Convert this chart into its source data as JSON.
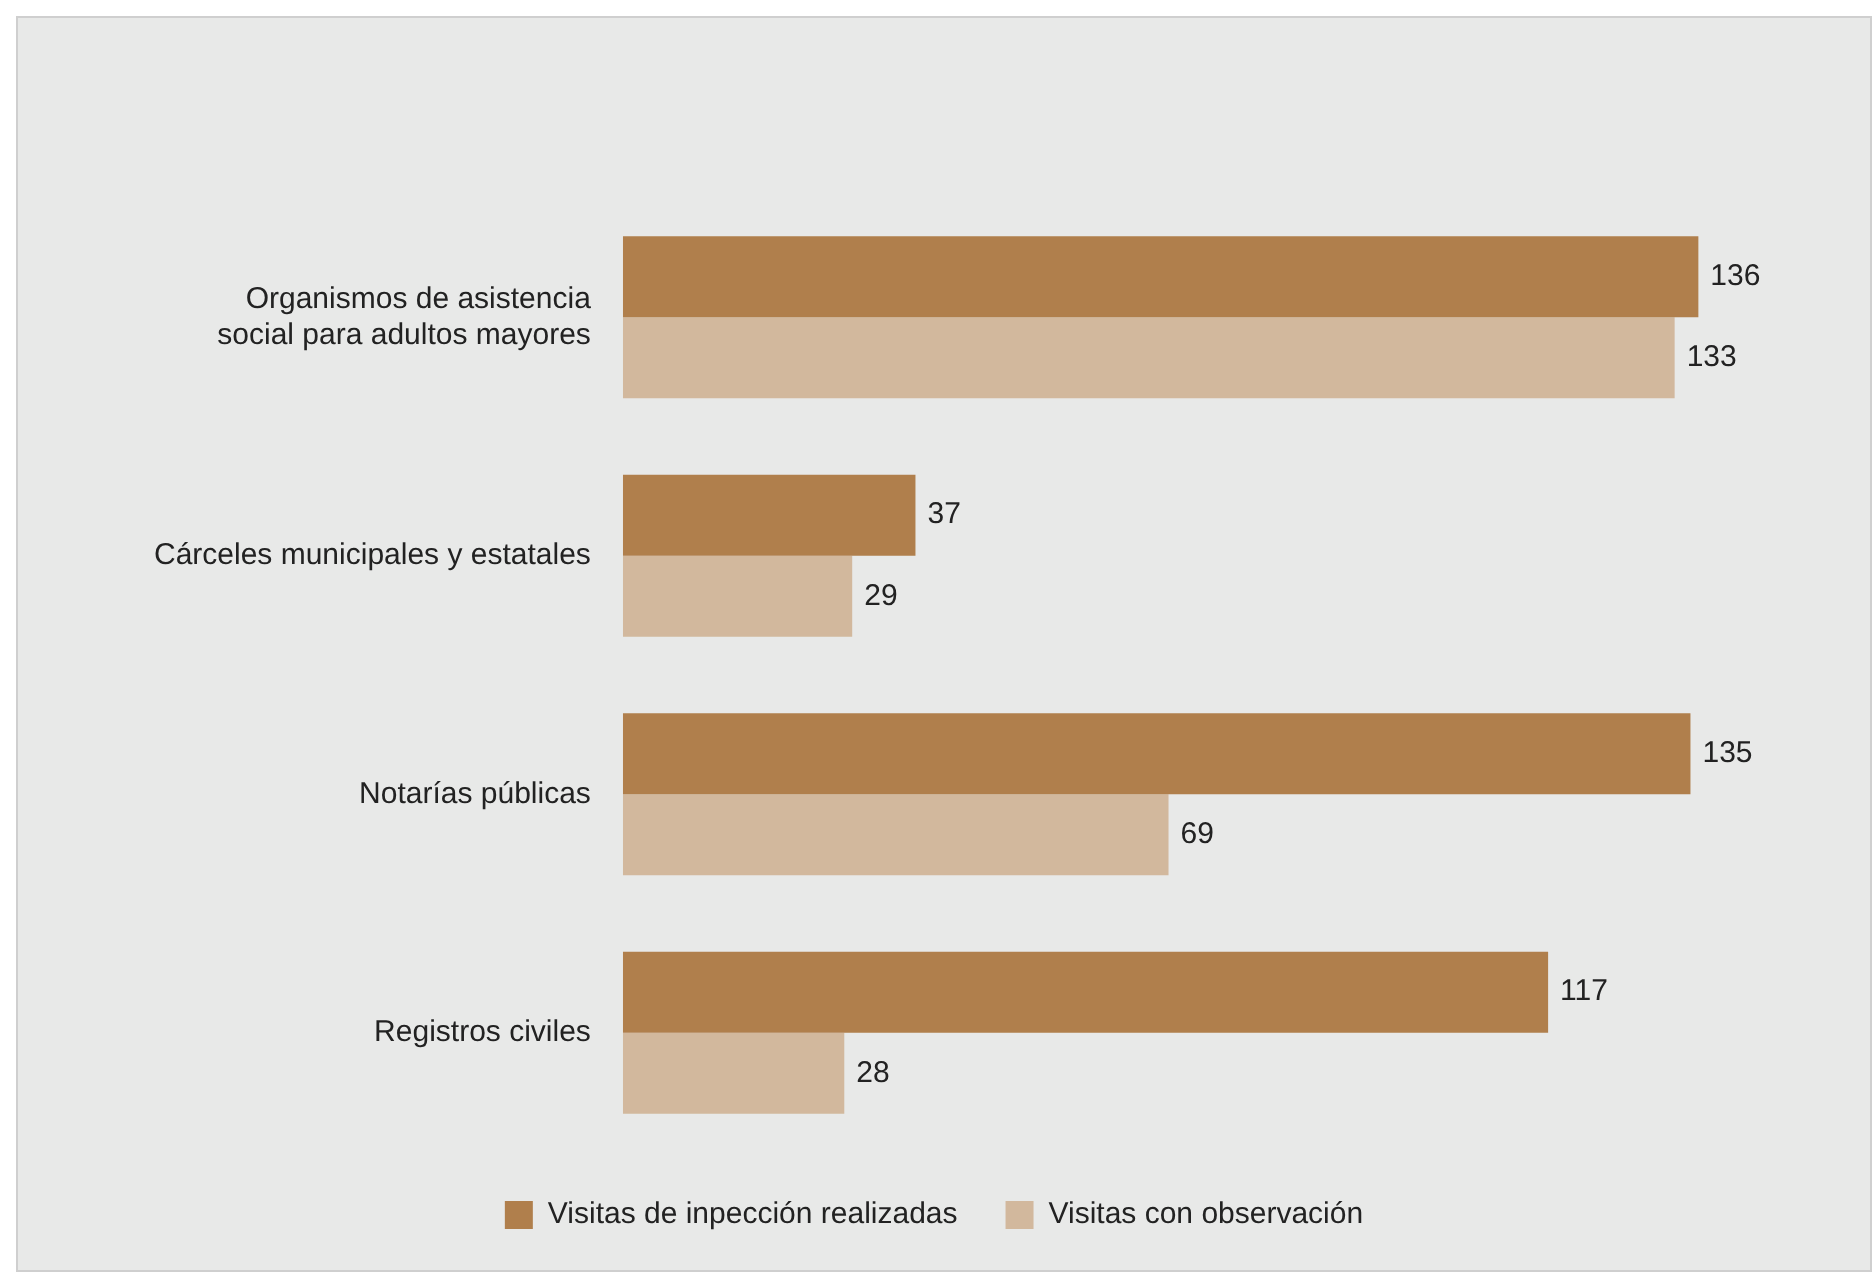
{
  "chart_data": {
    "type": "bar",
    "orientation": "horizontal",
    "categories": [
      "Organismos de asistencia social para adultos mayores",
      "Cárceles municipales y estatales",
      "Notarías públicas",
      "Registros civiles"
    ],
    "series": [
      {
        "name": "Visitas de inpección realizadas",
        "color": "#b07f4c",
        "values": [
          136,
          37,
          135,
          117
        ]
      },
      {
        "name": "Visitas con observación",
        "color": "#d2b89d",
        "values": [
          133,
          29,
          69,
          28
        ]
      }
    ],
    "data_labels": true,
    "legend": "bottom"
  }
}
